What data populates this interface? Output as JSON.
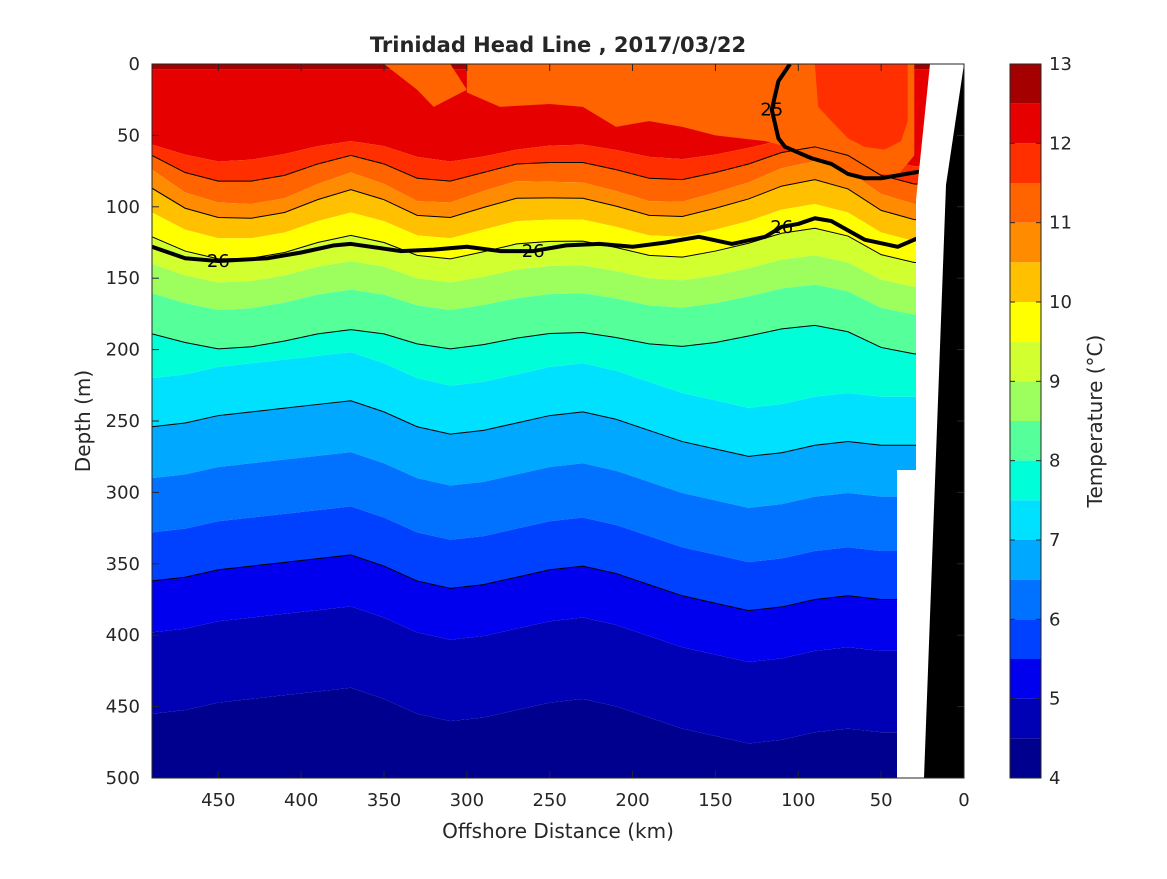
{
  "chart_data": {
    "type": "heatmap",
    "title": "Trinidad Head Line , 2017/03/22",
    "xlabel": "Offshore Distance (km)",
    "ylabel": "Depth (m)",
    "colorbar_label": "Temperature (°C)",
    "xlim": [
      490,
      0
    ],
    "ylim": [
      0,
      500
    ],
    "x_ticks": [
      450,
      400,
      350,
      300,
      250,
      200,
      150,
      100,
      50,
      0
    ],
    "y_ticks": [
      0,
      50,
      100,
      150,
      200,
      250,
      300,
      350,
      400,
      450,
      500
    ],
    "colorbar_ticks": [
      4,
      5,
      6,
      7,
      8,
      9,
      10,
      11,
      12,
      13
    ],
    "colorbar_range": [
      4,
      13
    ],
    "temperature_levels": [
      {
        "range": [
          12.5,
          13.0
        ],
        "color": "#a50000"
      },
      {
        "range": [
          12.0,
          12.5
        ],
        "color": "#e60000"
      },
      {
        "range": [
          11.5,
          12.0
        ],
        "color": "#ff2f00"
      },
      {
        "range": [
          11.0,
          11.5
        ],
        "color": "#ff6400"
      },
      {
        "range": [
          10.5,
          11.0
        ],
        "color": "#ff8c00"
      },
      {
        "range": [
          10.0,
          10.5
        ],
        "color": "#ffc000"
      },
      {
        "range": [
          9.5,
          10.0
        ],
        "color": "#ffff00"
      },
      {
        "range": [
          9.0,
          9.5
        ],
        "color": "#d2ff30"
      },
      {
        "range": [
          8.5,
          9.0
        ],
        "color": "#9cff5e"
      },
      {
        "range": [
          8.0,
          8.5
        ],
        "color": "#55ff9a"
      },
      {
        "range": [
          7.5,
          8.0
        ],
        "color": "#00ffd9"
      },
      {
        "range": [
          7.0,
          7.5
        ],
        "color": "#00e0ff"
      },
      {
        "range": [
          6.5,
          7.0
        ],
        "color": "#00a8ff"
      },
      {
        "range": [
          6.0,
          6.5
        ],
        "color": "#0072ff"
      },
      {
        "range": [
          5.5,
          6.0
        ],
        "color": "#0040ff"
      },
      {
        "range": [
          5.0,
          5.5
        ],
        "color": "#0000ee"
      },
      {
        "range": [
          4.5,
          5.0
        ],
        "color": "#0000b4"
      },
      {
        "range": [
          4.0,
          4.5
        ],
        "color": "#00008f"
      }
    ],
    "density_contours": [
      {
        "label": "26",
        "bold": true,
        "x": [
          490,
          470,
          450,
          420,
          400,
          380,
          370,
          340,
          320,
          300,
          280,
          260,
          240,
          220,
          200,
          180,
          160,
          140,
          120,
          110,
          100,
          90,
          80,
          60,
          40,
          20
        ],
        "depth": [
          128,
          136,
          138,
          136,
          132,
          127,
          126,
          131,
          130,
          128,
          131,
          131,
          127,
          126,
          128,
          125,
          121,
          126,
          121,
          114,
          112,
          108,
          110,
          123,
          128,
          118
        ]
      },
      {
        "label": "25",
        "bold": true,
        "x": [
          105,
          112,
          116,
          112,
          108,
          100,
          92,
          80,
          70,
          60,
          50,
          40,
          20
        ],
        "depth": [
          0,
          12,
          32,
          52,
          58,
          62,
          66,
          70,
          77,
          80,
          80,
          78,
          74
        ]
      }
    ]
  }
}
